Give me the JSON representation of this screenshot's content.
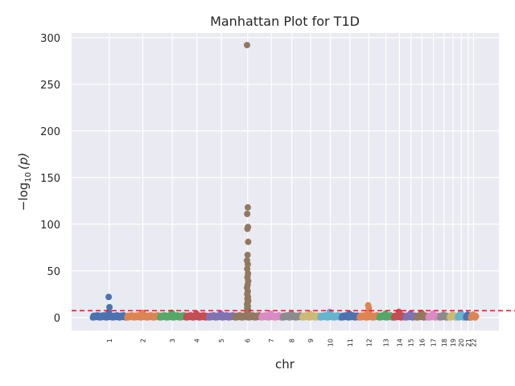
{
  "chart_data": {
    "type": "scatter",
    "title": "Manhattan Plot for T1D",
    "xlabel": "chr",
    "ylabel_main": "−log",
    "ylabel_sub": "10",
    "ylabel_tail": "(p)",
    "ylim": [
      -14,
      305
    ],
    "yticks": [
      0,
      50,
      100,
      150,
      200,
      250,
      300
    ],
    "grid": true,
    "threshold": 7.3,
    "threshold_color": "#d62728",
    "background": "#eaeaf2",
    "chromosomes": [
      {
        "label": "1",
        "range": [
          0,
          20
        ],
        "color": "#4c72b0",
        "peaks": [
          22,
          11,
          6
        ]
      },
      {
        "label": "2",
        "range": [
          21,
          40
        ],
        "color": "#dd8452",
        "peaks": [
          5,
          4
        ]
      },
      {
        "label": "3",
        "range": [
          41,
          56
        ],
        "color": "#55a868",
        "peaks": [
          5,
          4
        ]
      },
      {
        "label": "4",
        "range": [
          57,
          70
        ],
        "color": "#c44e52",
        "peaks": [
          4,
          3
        ]
      },
      {
        "label": "5",
        "range": [
          71,
          86
        ],
        "color": "#8172b3",
        "peaks": [
          4,
          3
        ]
      },
      {
        "label": "6",
        "range": [
          87,
          102
        ],
        "color": "#937860",
        "peaks": [
          292,
          118,
          111,
          97,
          95,
          81,
          67,
          61,
          57,
          52,
          47,
          43,
          39,
          35,
          32,
          28,
          25,
          22,
          20,
          18,
          16,
          14,
          12,
          10,
          8,
          6,
          4
        ]
      },
      {
        "label": "7",
        "range": [
          103,
          115
        ],
        "color": "#da8bc3",
        "peaks": [
          4,
          3
        ]
      },
      {
        "label": "8",
        "range": [
          116,
          127
        ],
        "color": "#8c8c8c",
        "peaks": [
          4,
          3
        ]
      },
      {
        "label": "9",
        "range": [
          128,
          138
        ],
        "color": "#ccb974",
        "peaks": [
          4,
          3
        ]
      },
      {
        "label": "10",
        "range": [
          139,
          151
        ],
        "color": "#64b5cd",
        "peaks": [
          6,
          4
        ]
      },
      {
        "label": "11",
        "range": [
          152,
          162
        ],
        "color": "#4c72b0",
        "peaks": [
          4,
          3
        ]
      },
      {
        "label": "12",
        "range": [
          163,
          174
        ],
        "color": "#dd8452",
        "peaks": [
          13,
          10,
          7,
          5
        ]
      },
      {
        "label": "13",
        "range": [
          175,
          183
        ],
        "color": "#55a868",
        "peaks": [
          4,
          3
        ]
      },
      {
        "label": "14",
        "range": [
          184,
          190.5
        ],
        "color": "#c44e52",
        "peaks": [
          6,
          4
        ]
      },
      {
        "label": "15",
        "range": [
          191,
          197.5
        ],
        "color": "#8172b3",
        "peaks": [
          4,
          3
        ]
      },
      {
        "label": "16",
        "range": [
          198,
          204
        ],
        "color": "#937860",
        "peaks": [
          5,
          4
        ]
      },
      {
        "label": "17",
        "range": [
          205,
          211
        ],
        "color": "#da8bc3",
        "peaks": [
          4,
          3
        ]
      },
      {
        "label": "18",
        "range": [
          212,
          217
        ],
        "color": "#8c8c8c",
        "peaks": [
          3
        ]
      },
      {
        "label": "19",
        "range": [
          218,
          222
        ],
        "color": "#ccb974",
        "peaks": [
          3
        ]
      },
      {
        "label": "20",
        "range": [
          223,
          227
        ],
        "color": "#64b5cd",
        "peaks": [
          5,
          3
        ]
      },
      {
        "label": "21",
        "range": [
          228,
          230.5
        ],
        "color": "#4c72b0",
        "peaks": [
          3
        ]
      },
      {
        "label": "22",
        "range": [
          231,
          234
        ],
        "color": "#dd8452",
        "peaks": [
          3
        ]
      }
    ]
  }
}
